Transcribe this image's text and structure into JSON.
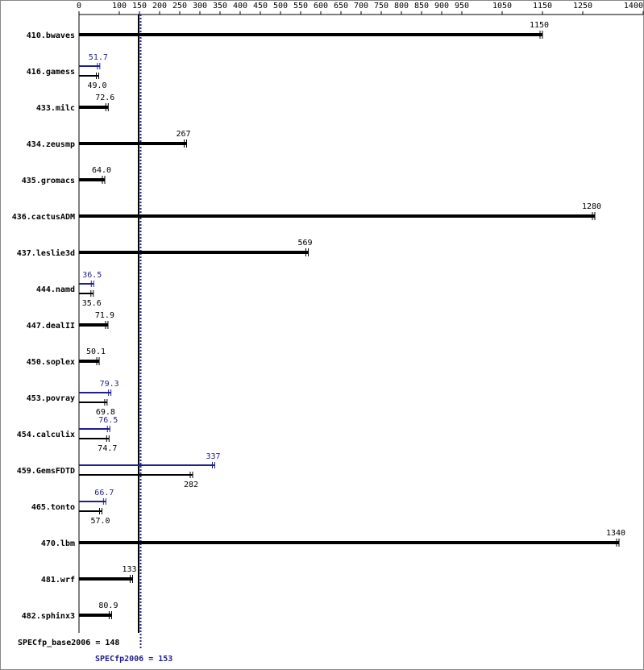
{
  "chart_data": {
    "type": "bar",
    "orientation": "horizontal",
    "categories": [
      "410.bwaves",
      "416.gamess",
      "433.milc",
      "434.zeusmp",
      "435.gromacs",
      "436.cactusADM",
      "437.leslie3d",
      "444.namd",
      "447.dealII",
      "450.soplex",
      "453.povray",
      "454.calculix",
      "459.GemsFDTD",
      "465.tonto",
      "470.lbm",
      "481.wrf",
      "482.sphinx3"
    ],
    "series": [
      {
        "name": "base",
        "color": "#000000",
        "values": [
          1150,
          49.0,
          72.6,
          267,
          64.0,
          1280,
          569,
          35.6,
          71.9,
          50.1,
          69.8,
          74.7,
          282,
          57.0,
          1340,
          133,
          80.9
        ],
        "value_labels": [
          "1150",
          "49.0",
          "72.6",
          "267",
          "64.0",
          "1280",
          "569",
          "35.6",
          "71.9",
          "50.1",
          "69.8",
          "74.7",
          "282",
          "57.0",
          "1340",
          "133",
          "80.9"
        ]
      },
      {
        "name": "peak",
        "color": "#1f1f8f",
        "values": [
          null,
          51.7,
          null,
          null,
          null,
          null,
          null,
          36.5,
          null,
          null,
          79.3,
          76.5,
          337,
          66.7,
          null,
          null,
          null
        ],
        "value_labels": [
          null,
          "51.7",
          null,
          null,
          null,
          null,
          null,
          "36.5",
          null,
          null,
          "79.3",
          "76.5",
          "337",
          "66.7",
          null,
          null,
          null
        ]
      }
    ],
    "xlim": [
      0,
      1400
    ],
    "xticks": [
      0,
      100,
      150,
      200,
      250,
      300,
      350,
      400,
      450,
      500,
      550,
      600,
      650,
      700,
      750,
      800,
      850,
      900,
      950,
      1050,
      1150,
      1250,
      1400
    ],
    "reference_lines": [
      {
        "value": 148,
        "label": "SPECfp_base2006 = 148",
        "color": "#000000",
        "style": "solid"
      },
      {
        "value": 153,
        "label": "SPECfp2006 = 153",
        "color": "#1f1f8f",
        "style": "dotted"
      }
    ]
  }
}
